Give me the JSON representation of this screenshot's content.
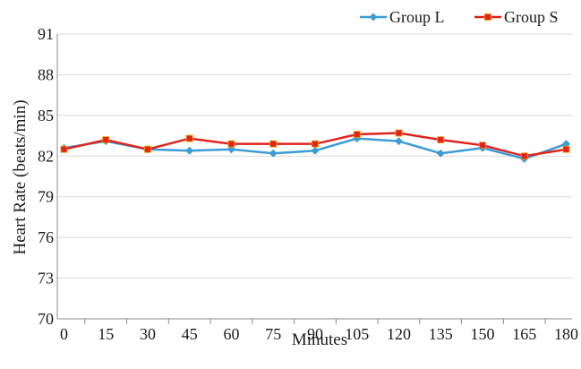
{
  "chart_data": {
    "type": "line",
    "title": "",
    "xlabel": "Minutes",
    "ylabel": "Heart Rate (beats/min)",
    "categories": [
      "0",
      "15",
      "30",
      "45",
      "60",
      "75",
      "90",
      "105",
      "120",
      "135",
      "150",
      "165",
      "180"
    ],
    "ylim": [
      70,
      91
    ],
    "yticks": [
      70,
      73,
      76,
      79,
      82,
      85,
      88,
      91
    ],
    "grid": "horizontal",
    "legend_position": "top-right",
    "series": [
      {
        "name": "Group L",
        "color": "#3d9bd6",
        "marker": "diamond",
        "values": [
          82.6,
          83.1,
          82.5,
          82.4,
          82.5,
          82.2,
          82.4,
          83.3,
          83.1,
          82.2,
          82.6,
          81.8,
          82.9
        ]
      },
      {
        "name": "Group S",
        "color": "#e0231c",
        "marker": "square",
        "values": [
          82.5,
          83.2,
          82.5,
          83.3,
          82.9,
          82.9,
          82.9,
          83.6,
          83.7,
          83.2,
          82.8,
          82.0,
          82.5
        ]
      }
    ]
  }
}
